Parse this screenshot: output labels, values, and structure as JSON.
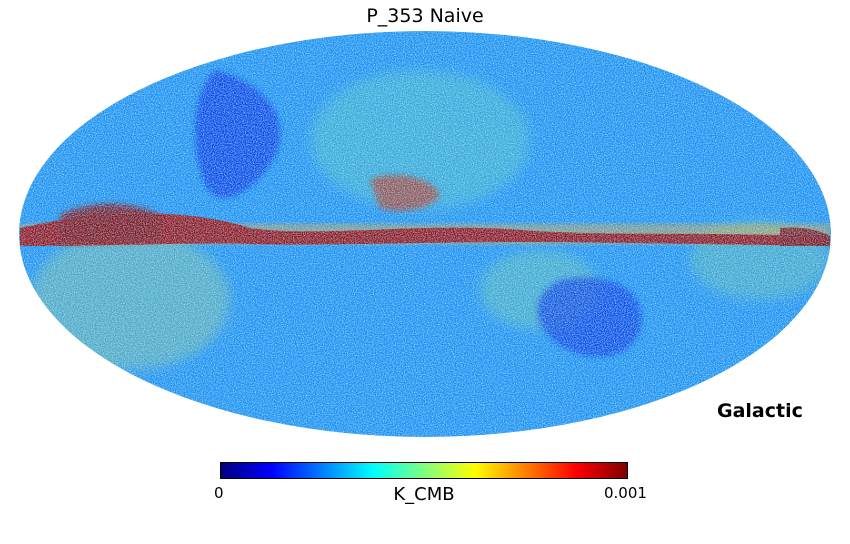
{
  "title": "P_353 Naive",
  "coordinate_system": "Galactic",
  "projection": "mollweide",
  "colorbar": {
    "min_label": "0",
    "max_label": "0.001",
    "unit": "K_CMB",
    "colormap": "jet",
    "colors": [
      "#00007f",
      "#0000ff",
      "#007fff",
      "#00ffff",
      "#7fff7f",
      "#ffff00",
      "#ff7f00",
      "#ff0000",
      "#7f0000"
    ]
  }
}
